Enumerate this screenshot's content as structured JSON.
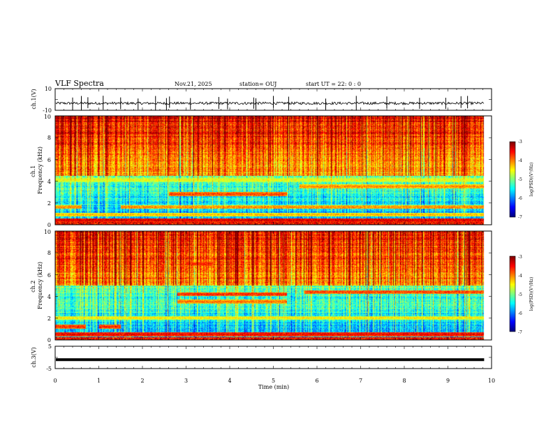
{
  "header": {
    "title": "VLF Spectra",
    "date": "Nov.21, 2025",
    "station": "station= OUJ",
    "start": "start  UT =  22: 0  : 0"
  },
  "chart_data": [
    {
      "type": "line",
      "name": "waveform-ch1",
      "ylabel": "ch.1(V)",
      "ylim": [
        -10,
        10
      ],
      "yticks": [
        "10",
        "-10"
      ],
      "xlim": [
        0,
        10
      ],
      "baseline": -3.5,
      "noise_amplitude": 1.2,
      "spike_times": [
        0.4,
        0.6,
        0.75,
        1.1,
        1.5,
        1.9,
        2.3,
        2.55,
        2.62,
        3.1,
        3.75,
        3.95,
        4.55,
        4.6,
        5.0,
        5.35,
        6.2,
        6.9,
        7.6,
        8.35,
        8.95,
        9.3,
        9.45
      ]
    },
    {
      "type": "heatmap",
      "name": "spectrogram-ch1",
      "ylabel": "ch.1\nFrequency (kHz)",
      "xlim": [
        0,
        9.83
      ],
      "ylim": [
        0,
        10
      ],
      "yticks": [
        "0",
        "2",
        "4",
        "6",
        "8",
        "10"
      ],
      "colorbar": {
        "label": "log(PSD)(V²/Hz)",
        "range": [
          -7,
          -3
        ],
        "ticks": [
          "-3",
          "-4",
          "-5",
          "-6",
          "-7"
        ]
      },
      "transition_khz": 4.5,
      "bands": [
        {
          "segments": [
            [
              0,
              9.83
            ]
          ],
          "khz": 0.4,
          "level": -3.3
        },
        {
          "segments": [
            [
              0,
              9.83
            ]
          ],
          "khz": 0.9,
          "level": -4.2
        },
        {
          "segments": [
            [
              0,
              0.6
            ],
            [
              1.5,
              9.83
            ]
          ],
          "khz": 1.6,
          "level": -4.0
        },
        {
          "segments": [
            [
              2.6,
              5.3
            ]
          ],
          "khz": 2.8,
          "level": -3.7
        },
        {
          "segments": [
            [
              5.6,
              9.83
            ]
          ],
          "khz": 3.5,
          "level": -4.0
        },
        {
          "segments": [
            [
              0,
              9.83
            ]
          ],
          "khz": 4.1,
          "level": -4.5
        }
      ]
    },
    {
      "type": "heatmap",
      "name": "spectrogram-ch2",
      "ylabel": "ch.2\nFrequency (kHz)",
      "xlim": [
        0,
        9.83
      ],
      "ylim": [
        0,
        10
      ],
      "yticks": [
        "0",
        "2",
        "4",
        "6",
        "8",
        "10"
      ],
      "colorbar": {
        "label": "log(PSD)(V²/Hz)",
        "range": [
          -7,
          -3
        ],
        "ticks": [
          "-3",
          "-4",
          "-5",
          "-6",
          "-7"
        ]
      },
      "transition_khz": 5.0,
      "bands": [
        {
          "segments": [
            [
              0,
              9.83
            ]
          ],
          "khz": 0.5,
          "level": -3.4
        },
        {
          "segments": [
            [
              0,
              0.7
            ],
            [
              1.0,
              1.5
            ]
          ],
          "khz": 1.2,
          "level": -3.6
        },
        {
          "segments": [
            [
              2.8,
              5.3
            ]
          ],
          "khz": 4.2,
          "level": -3.6
        },
        {
          "segments": [
            [
              2.8,
              5.3
            ]
          ],
          "khz": 3.5,
          "level": -3.9
        },
        {
          "segments": [
            [
              5.7,
              9.83
            ]
          ],
          "khz": 4.4,
          "level": -3.7
        },
        {
          "segments": [
            [
              3.0,
              3.6
            ]
          ],
          "khz": 7.0,
          "level": -3.6
        },
        {
          "segments": [
            [
              0,
              9.83
            ]
          ],
          "khz": 2.0,
          "level": -4.4
        }
      ]
    },
    {
      "type": "line",
      "name": "waveform-ch3",
      "ylabel": "ch.3(V)",
      "xlabel": "Time (min)",
      "ylim": [
        -5,
        5
      ],
      "yticks": [
        "5",
        "-5"
      ],
      "xlim": [
        0,
        10
      ],
      "xticks": [
        "0",
        "1",
        "2",
        "3",
        "4",
        "5",
        "6",
        "7",
        "8",
        "9",
        "10"
      ],
      "baseline": -1.0,
      "data_end": 9.83
    }
  ]
}
